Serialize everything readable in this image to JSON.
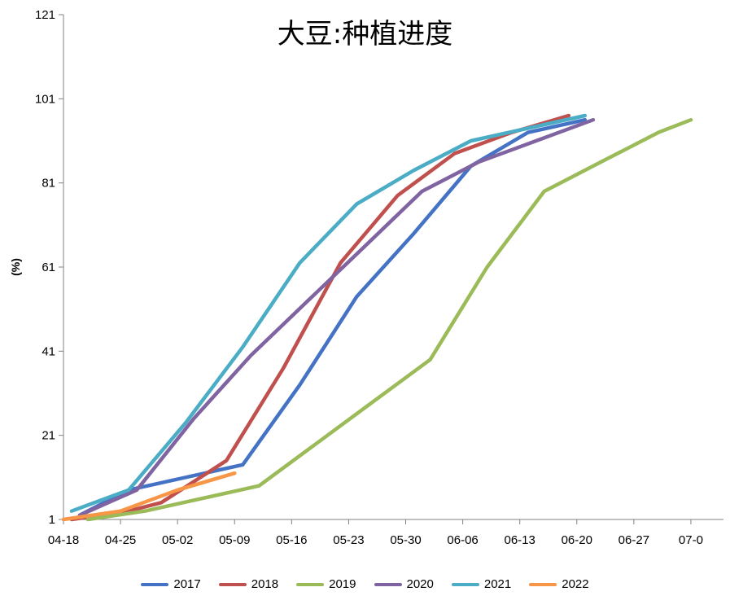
{
  "chart_data": {
    "type": "line",
    "title": "大豆:种植进度",
    "ylabel": "(%)",
    "xlabel": "",
    "ylim": [
      1,
      121
    ],
    "yticks": [
      1,
      21,
      41,
      61,
      81,
      101,
      121
    ],
    "xlim": [
      "04-18",
      "07-04"
    ],
    "xticks": [
      "04-18",
      "04-25",
      "05-02",
      "05-09",
      "05-16",
      "05-23",
      "05-30",
      "06-06",
      "06-13",
      "06-20",
      "06-27",
      "07-0"
    ],
    "grid": false,
    "legend_position": "bottom",
    "series": [
      {
        "name": "2017",
        "color": "#4472c4",
        "x": [
          "04-20",
          "04-26",
          "05-10",
          "05-17",
          "05-24",
          "05-31",
          "06-07",
          "06-14",
          "06-21"
        ],
        "y": [
          2,
          8,
          14,
          33,
          54,
          69,
          85,
          93,
          96
        ]
      },
      {
        "name": "2018",
        "color": "#c0504d",
        "x": [
          "04-19",
          "04-26",
          "04-30",
          "05-08",
          "05-15",
          "05-22",
          "05-29",
          "06-05",
          "06-12",
          "06-19"
        ],
        "y": [
          1,
          3,
          5,
          15,
          37,
          62,
          78,
          88,
          93,
          97
        ]
      },
      {
        "name": "2019",
        "color": "#9bbb59",
        "x": [
          "04-21",
          "04-28",
          "05-05",
          "05-12",
          "05-19",
          "05-26",
          "06-02",
          "06-09",
          "06-16",
          "06-23",
          "06-30",
          "07-04"
        ],
        "y": [
          1,
          3,
          6,
          9,
          19,
          29,
          39,
          61,
          79,
          86,
          93,
          96
        ]
      },
      {
        "name": "2020",
        "color": "#8064a2",
        "x": [
          "04-20",
          "04-27",
          "05-04",
          "05-11",
          "05-18",
          "05-25",
          "06-01",
          "06-08",
          "06-15",
          "06-22"
        ],
        "y": [
          2,
          8,
          25,
          40,
          53,
          66,
          79,
          86,
          91,
          96
        ]
      },
      {
        "name": "2021",
        "color": "#4bacc6",
        "x": [
          "04-19",
          "04-26",
          "05-03",
          "05-10",
          "05-17",
          "05-24",
          "05-31",
          "06-07",
          "06-14",
          "06-21"
        ],
        "y": [
          3,
          8,
          24,
          42,
          62,
          76,
          84,
          91,
          94,
          97
        ]
      },
      {
        "name": "2022",
        "color": "#f79646",
        "x": [
          "04-18",
          "04-25",
          "05-02",
          "05-09"
        ],
        "y": [
          1,
          3,
          8,
          12
        ]
      }
    ]
  }
}
